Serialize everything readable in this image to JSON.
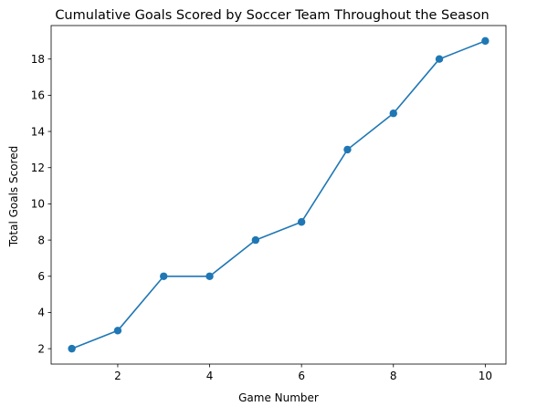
{
  "chart_data": {
    "type": "line",
    "title": "Cumulative Goals Scored by Soccer Team Throughout the Season",
    "xlabel": "Game Number",
    "ylabel": "Total Goals Scored",
    "x": [
      1,
      2,
      3,
      4,
      5,
      6,
      7,
      8,
      9,
      10
    ],
    "series": [
      {
        "values": [
          2,
          3,
          6,
          6,
          8,
          9,
          13,
          15,
          18,
          19
        ]
      }
    ],
    "xlim": [
      0.55,
      10.45
    ],
    "ylim": [
      1.15,
      19.85
    ],
    "xticks": [
      2,
      4,
      6,
      8,
      10
    ],
    "yticks": [
      2,
      4,
      6,
      8,
      10,
      12,
      14,
      16,
      18
    ],
    "markers": true,
    "grid": false,
    "legend": "none",
    "colors": {
      "series": "#1f77b4",
      "axes": "#000000"
    }
  }
}
